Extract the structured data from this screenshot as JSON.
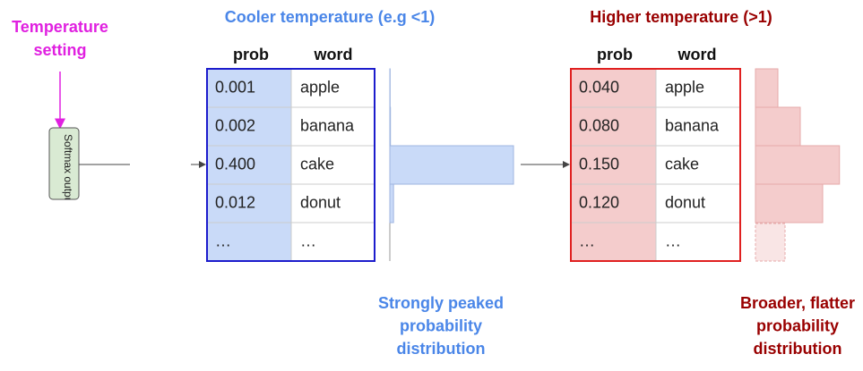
{
  "annotation": {
    "lines": [
      "Temperature",
      "setting"
    ]
  },
  "softmax": {
    "label": "Softmax output"
  },
  "cool": {
    "title": "Cooler temperature (e.g <1)",
    "columns": [
      "prob",
      "word"
    ],
    "rows": [
      [
        "0.001",
        "apple"
      ],
      [
        "0.002",
        "banana"
      ],
      [
        "0.400",
        "cake"
      ],
      [
        "0.012",
        "donut"
      ],
      [
        "…",
        "…"
      ]
    ],
    "caption": [
      "Strongly peaked",
      "probability",
      "distribution"
    ]
  },
  "hot": {
    "title": "Higher temperature (>1)",
    "columns": [
      "prob",
      "word"
    ],
    "rows": [
      [
        "0.040",
        "apple"
      ],
      [
        "0.080",
        "banana"
      ],
      [
        "0.150",
        "cake"
      ],
      [
        "0.120",
        "donut"
      ],
      [
        "…",
        "…"
      ]
    ],
    "caption": [
      "Broader, flatter",
      "probability",
      "distribution"
    ]
  }
}
